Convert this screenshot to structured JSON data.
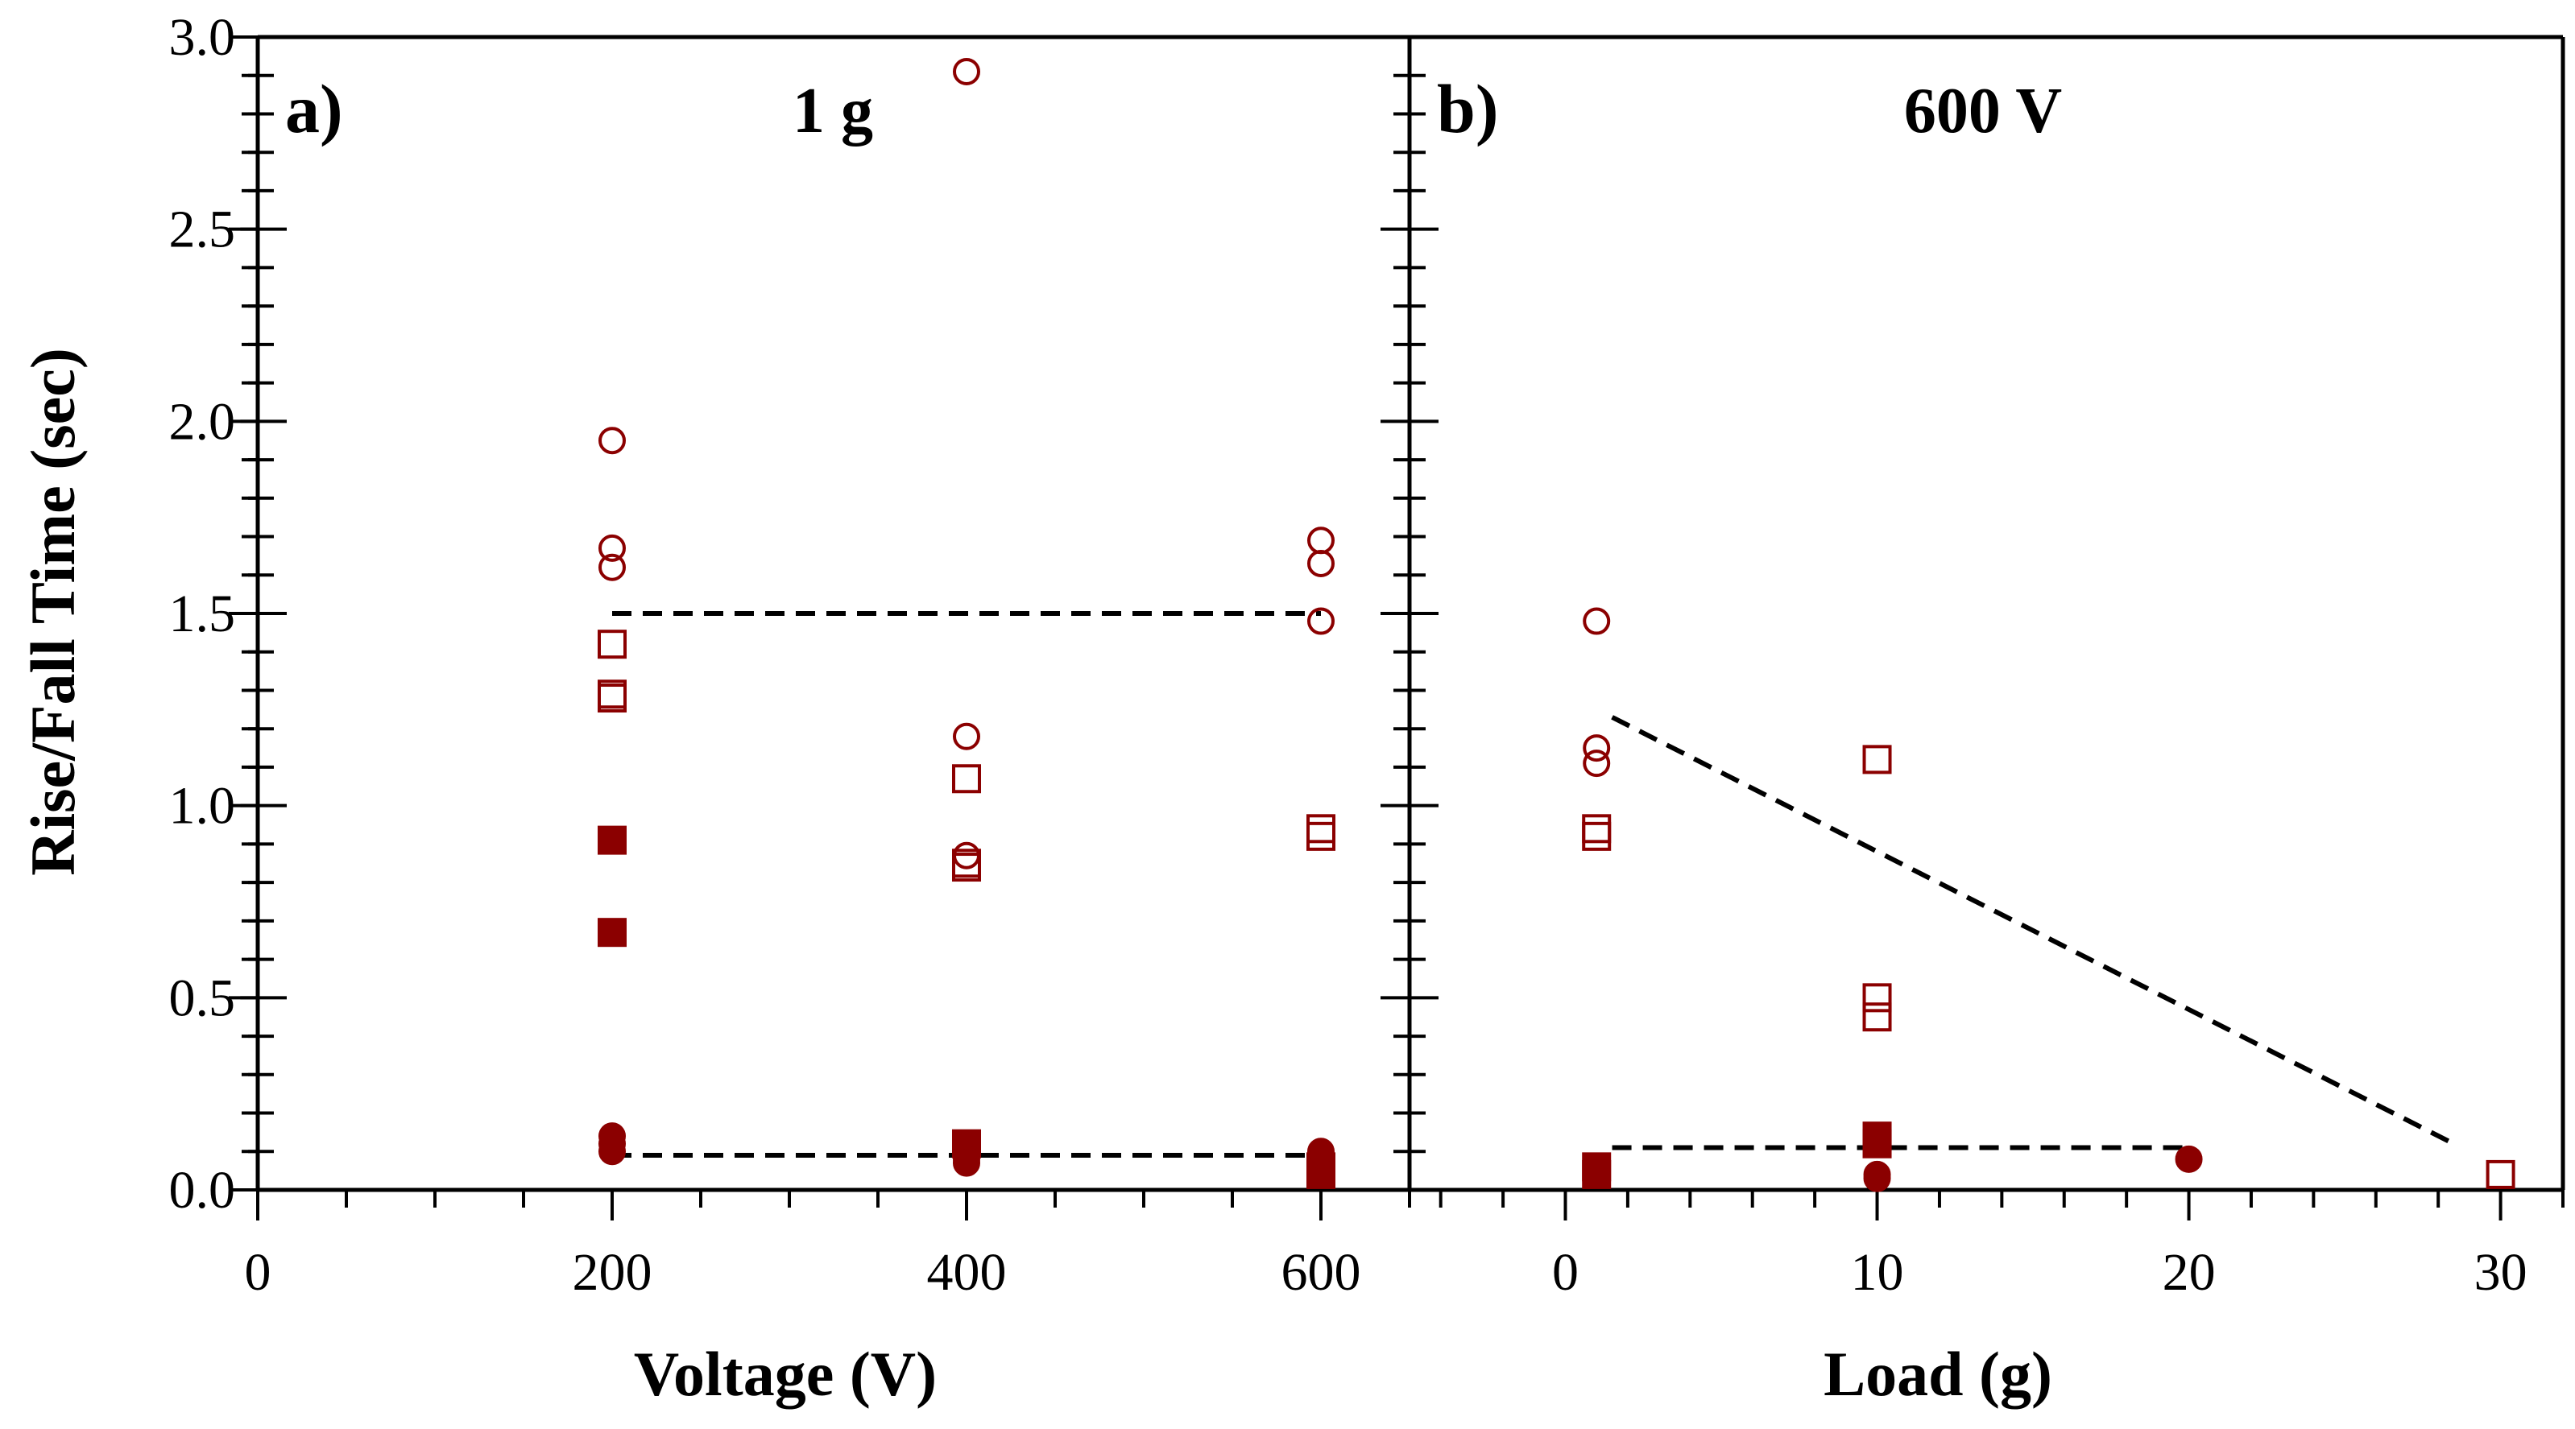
{
  "figure": {
    "ylabel": "Rise/Fall Time (sec)",
    "marker_color": "#8b0000",
    "fit_color": "#000000"
  },
  "chart_data": [
    {
      "type": "scatter",
      "panel": "a)",
      "condition": "1 g",
      "xlabel": "Voltage (V)",
      "ylabel": "Rise/Fall Time (sec)",
      "xlim": [
        0,
        650
      ],
      "ylim": [
        0,
        3.0
      ],
      "x_ticks": [
        0,
        200,
        400,
        600
      ],
      "y_ticks": [
        0.0,
        0.5,
        1.0,
        1.5,
        2.0,
        2.5,
        3.0
      ],
      "y_tick_labels": [
        "0.0",
        "0.5",
        "1.0",
        "1.5",
        "2.0",
        "2.5",
        "3.0"
      ],
      "series": [
        {
          "name": "open circles",
          "marker": "circle",
          "filled": false,
          "points": [
            [
              200,
              1.95
            ],
            [
              200,
              1.67
            ],
            [
              200,
              1.62
            ],
            [
              400,
              2.91
            ],
            [
              400,
              1.18
            ],
            [
              400,
              0.87
            ],
            [
              600,
              1.69
            ],
            [
              600,
              1.63
            ],
            [
              600,
              1.48
            ]
          ]
        },
        {
          "name": "open squares",
          "marker": "square",
          "filled": false,
          "points": [
            [
              200,
              1.42
            ],
            [
              200,
              1.29
            ],
            [
              200,
              1.28
            ],
            [
              400,
              1.07
            ],
            [
              400,
              0.85
            ],
            [
              400,
              0.84
            ],
            [
              600,
              0.94
            ],
            [
              600,
              0.92
            ]
          ]
        },
        {
          "name": "filled squares",
          "marker": "square",
          "filled": true,
          "points": [
            [
              200,
              0.91
            ],
            [
              200,
              0.67
            ],
            [
              400,
              0.12
            ],
            [
              600,
              0.06
            ],
            [
              600,
              0.04
            ]
          ]
        },
        {
          "name": "filled circles",
          "marker": "circle",
          "filled": true,
          "points": [
            [
              200,
              0.14
            ],
            [
              200,
              0.12
            ],
            [
              200,
              0.1
            ],
            [
              400,
              0.08
            ],
            [
              400,
              0.07
            ],
            [
              600,
              0.1
            ],
            [
              600,
              0.09
            ]
          ]
        }
      ],
      "trend_lines": [
        {
          "name": "upper dashed fit",
          "from": [
            200,
            1.5
          ],
          "to": [
            600,
            1.5
          ]
        },
        {
          "name": "lower dashed fit",
          "from": [
            200,
            0.09
          ],
          "to": [
            600,
            0.09
          ]
        }
      ]
    },
    {
      "type": "scatter",
      "panel": "b)",
      "condition": "600 V",
      "xlabel": "Load (g)",
      "ylabel": "Rise/Fall Time (sec)",
      "xlim": [
        -5,
        32
      ],
      "ylim": [
        0,
        3.0
      ],
      "x_ticks": [
        0,
        10,
        20,
        30
      ],
      "y_ticks": [
        0.0,
        0.5,
        1.0,
        1.5,
        2.0,
        2.5,
        3.0
      ],
      "series": [
        {
          "name": "open circles",
          "marker": "circle",
          "filled": false,
          "points": [
            [
              1,
              1.48
            ],
            [
              1,
              1.15
            ],
            [
              1,
              1.11
            ]
          ]
        },
        {
          "name": "open squares",
          "marker": "square",
          "filled": false,
          "points": [
            [
              1,
              0.94
            ],
            [
              1,
              0.92
            ],
            [
              10,
              1.12
            ],
            [
              10,
              0.5
            ],
            [
              10,
              0.45
            ],
            [
              30,
              0.04
            ]
          ]
        },
        {
          "name": "filled squares",
          "marker": "square",
          "filled": true,
          "points": [
            [
              1,
              0.06
            ],
            [
              1,
              0.04
            ],
            [
              10,
              0.14
            ],
            [
              10,
              0.12
            ]
          ]
        },
        {
          "name": "filled circles",
          "marker": "circle",
          "filled": true,
          "points": [
            [
              10,
              0.04
            ],
            [
              10,
              0.03
            ],
            [
              20,
              0.08
            ]
          ]
        }
      ],
      "trend_lines": [
        {
          "name": "decreasing dashed fit",
          "from": [
            1.5,
            1.23
          ],
          "to": [
            28.5,
            0.12
          ]
        },
        {
          "name": "flat dashed fit",
          "from": [
            1.5,
            0.11
          ],
          "to": [
            20,
            0.11
          ]
        }
      ]
    }
  ]
}
